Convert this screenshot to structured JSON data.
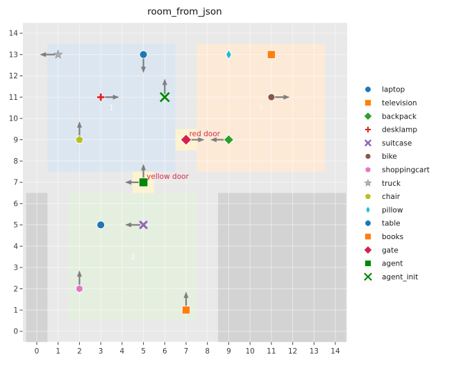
{
  "chart_data": {
    "type": "scatter",
    "title": "room_from_json",
    "xlim": [
      -0.65,
      14.55
    ],
    "ylim": [
      -0.5,
      14.5
    ],
    "xticks": [
      0,
      1,
      2,
      3,
      4,
      5,
      6,
      7,
      8,
      9,
      10,
      11,
      12,
      13,
      14
    ],
    "yticks": [
      0,
      1,
      2,
      3,
      4,
      5,
      6,
      7,
      8,
      9,
      10,
      11,
      12,
      13,
      14
    ],
    "grid": true,
    "legend_position": "center-right",
    "background": "#e9e9e9",
    "grid_color": "rgba(255,255,255,0.5)",
    "tick_color": "#3c3c3c",
    "arrow_color": "#7f7f7f",
    "region_label_color": "#fafafa",
    "door_label_color": "#d5294d",
    "regions": [
      {
        "name": "wall-left",
        "x0": -0.5,
        "y0": -0.5,
        "x1": 0.5,
        "y1": 6.5,
        "color": "#d3d3d3",
        "label": ""
      },
      {
        "name": "wall-right",
        "x0": 8.5,
        "y0": -0.5,
        "x1": 14.5,
        "y1": 6.5,
        "color": "#d3d3d3",
        "label": ""
      },
      {
        "name": "room-1",
        "x0": 0.5,
        "y0": 7.5,
        "x1": 6.5,
        "y1": 13.5,
        "color": "#dce6f0",
        "label": "1",
        "label_x": 3.5,
        "label_y": 10.5
      },
      {
        "name": "room-2",
        "x0": 1.5,
        "y0": 0.5,
        "x1": 7.5,
        "y1": 6.5,
        "color": "#e5efdf",
        "label": "2",
        "label_x": 4.5,
        "label_y": 3.5
      },
      {
        "name": "room-3",
        "x0": 7.5,
        "y0": 7.5,
        "x1": 13.5,
        "y1": 13.5,
        "color": "#fcead7",
        "label": "3",
        "label_x": 10.5,
        "label_y": 10.5
      },
      {
        "name": "door-red-area",
        "x0": 6.5,
        "y0": 8.5,
        "x1": 7.5,
        "y1": 9.5,
        "color": "#fdf3d0",
        "label": ""
      },
      {
        "name": "door-yellow-area",
        "x0": 4.5,
        "y0": 6.5,
        "x1": 5.5,
        "y1": 7.5,
        "color": "#fdf3d0",
        "label": ""
      }
    ],
    "objects": [
      {
        "name": "laptop",
        "marker": "circle",
        "color": "#1f77b4",
        "x": 5,
        "y": 13,
        "size": 1.0,
        "arrows": [
          "down"
        ]
      },
      {
        "name": "television",
        "marker": "square",
        "color": "#ff7f0e",
        "x": 11,
        "y": 13,
        "size": 1.0,
        "arrows": []
      },
      {
        "name": "backpack",
        "marker": "diamond",
        "color": "#2ca02c",
        "x": 9,
        "y": 9,
        "size": 0.95,
        "arrows": [
          "left"
        ]
      },
      {
        "name": "desklamp",
        "marker": "plus",
        "color": "#d62728",
        "x": 3,
        "y": 11,
        "size": 1.0,
        "arrows": [
          "right"
        ]
      },
      {
        "name": "suitcase",
        "marker": "x-filled",
        "color": "#9467bd",
        "x": 5,
        "y": 5,
        "size": 1.0,
        "arrows": [
          "left"
        ]
      },
      {
        "name": "bike",
        "marker": "octagon",
        "color": "#8c564b",
        "x": 11,
        "y": 11,
        "size": 1.0,
        "arrows": [
          "right"
        ]
      },
      {
        "name": "shoppingcart",
        "marker": "hexagon",
        "color": "#e377c2",
        "x": 2,
        "y": 2,
        "size": 1.0,
        "arrows": [
          "up"
        ]
      },
      {
        "name": "truck",
        "marker": "star",
        "color": "#b3b3b3",
        "x": 1,
        "y": 13,
        "size": 1.0,
        "arrows": [
          "left"
        ]
      },
      {
        "name": "chair",
        "marker": "pentagon",
        "color": "#bcbd22",
        "x": 2,
        "y": 9,
        "size": 1.0,
        "arrows": [
          "up"
        ]
      },
      {
        "name": "pillow",
        "marker": "thin-diamond",
        "color": "#17becf",
        "x": 9,
        "y": 13,
        "size": 1.0,
        "arrows": []
      },
      {
        "name": "table",
        "marker": "circle",
        "color": "#1f77b4",
        "x": 3,
        "y": 5,
        "size": 1.0,
        "arrows": []
      },
      {
        "name": "books",
        "marker": "square",
        "color": "#ff7f0e",
        "x": 7,
        "y": 1,
        "size": 1.0,
        "arrows": [
          "up"
        ]
      },
      {
        "name": "gate",
        "marker": "diamond",
        "color": "#d5224c",
        "x": 7,
        "y": 9,
        "size": 1.05,
        "arrows": [
          "right"
        ]
      },
      {
        "name": "agent",
        "marker": "square",
        "color": "#068806",
        "x": 5,
        "y": 7,
        "size": 1.1,
        "arrows": [
          "up",
          "left"
        ]
      },
      {
        "name": "agent_init",
        "marker": "x-stroke",
        "color": "#068806",
        "x": 6,
        "y": 11,
        "size": 1.0,
        "arrows": [
          "up"
        ]
      }
    ],
    "door_labels": [
      {
        "text": "red door",
        "x": 7.15,
        "y": 9.28
      },
      {
        "text": "yellow door",
        "x": 5.15,
        "y": 7.28
      }
    ],
    "legend": [
      "laptop",
      "television",
      "backpack",
      "desklamp",
      "suitcase",
      "bike",
      "shoppingcart",
      "truck",
      "chair",
      "pillow",
      "table",
      "books",
      "gate",
      "agent",
      "agent_init"
    ]
  }
}
